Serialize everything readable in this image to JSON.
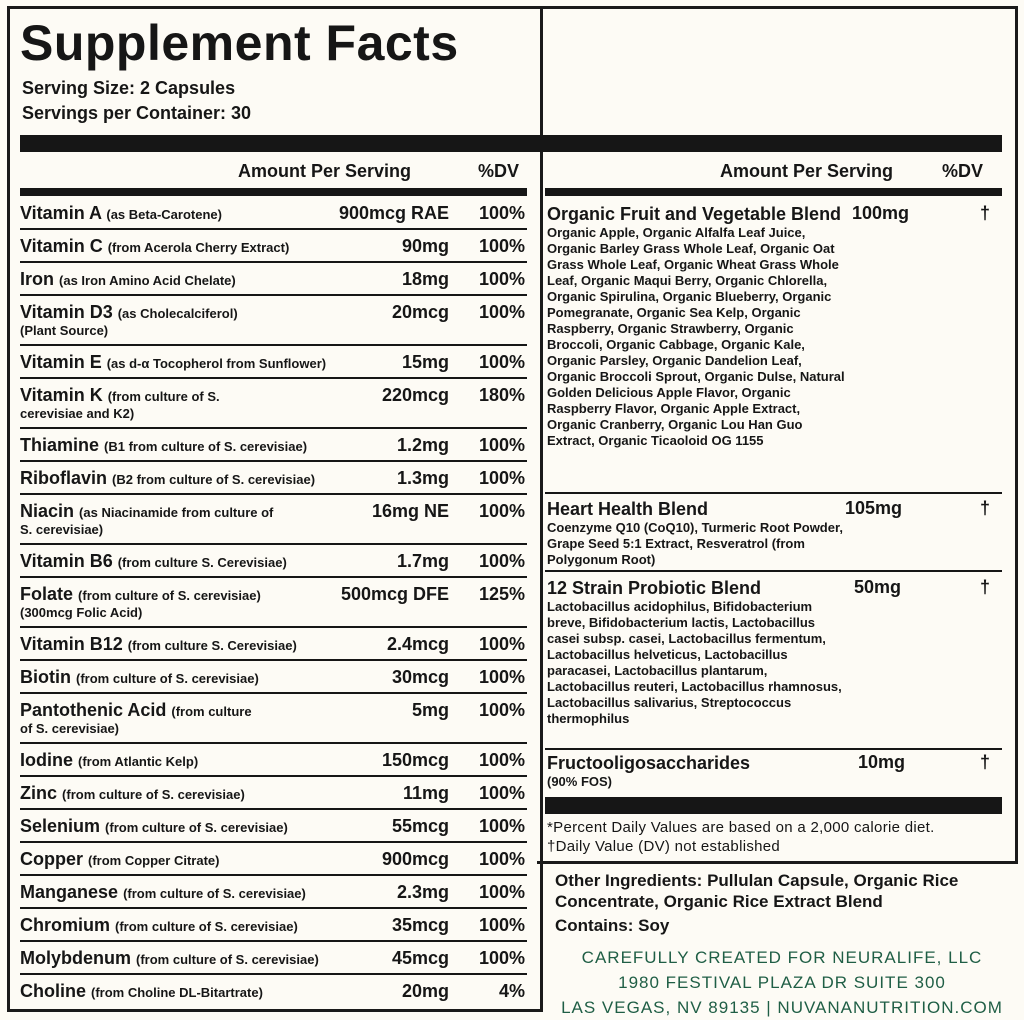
{
  "title": "Supplement Facts",
  "serving_size": "Serving Size: 2 Capsules",
  "servings_per_container": "Servings per Container: 30",
  "column_headers": {
    "amount": "Amount Per Serving",
    "dv": "%DV"
  },
  "left_rows": [
    {
      "name": "Vitamin A",
      "source": "(as Beta-Carotene)",
      "source2": "",
      "amount": "900mcg RAE",
      "dv": "100%"
    },
    {
      "name": "Vitamin C",
      "source": "(from Acerola Cherry Extract)",
      "source2": "",
      "amount": "90mg",
      "dv": "100%"
    },
    {
      "name": "Iron",
      "source": "(as Iron Amino Acid Chelate)",
      "source2": "",
      "amount": "18mg",
      "dv": "100%"
    },
    {
      "name": "Vitamin D3",
      "source": "(as Cholecalciferol)",
      "source2": "(Plant Source)",
      "amount": "20mcg",
      "dv": "100%"
    },
    {
      "name": "Vitamin E",
      "source": "(as d-α Tocopherol from Sunflower)",
      "source2": "",
      "amount": "15mg",
      "dv": "100%"
    },
    {
      "name": "Vitamin K",
      "source": "(from culture of S.",
      "source2": "cerevisiae and K2)",
      "amount": "220mcg",
      "dv": "180%"
    },
    {
      "name": "Thiamine",
      "source": "(B1 from culture of S. cerevisiae)",
      "source2": "",
      "amount": "1.2mg",
      "dv": "100%"
    },
    {
      "name": "Riboflavin",
      "source": "(B2 from culture of S. cerevisiae)",
      "source2": "",
      "amount": "1.3mg",
      "dv": "100%"
    },
    {
      "name": "Niacin",
      "source": "(as Niacinamide from culture of",
      "source2": "S. cerevisiae)",
      "amount": "16mg NE",
      "dv": "100%"
    },
    {
      "name": "Vitamin B6",
      "source": "(from culture S. Cerevisiae)",
      "source2": "",
      "amount": "1.7mg",
      "dv": "100%"
    },
    {
      "name": "Folate",
      "source": "(from culture of S. cerevisiae)",
      "source2": "(300mcg Folic Acid)",
      "amount": "500mcg DFE",
      "dv": "125%"
    },
    {
      "name": "Vitamin B12",
      "source": "(from culture S. Cerevisiae)",
      "source2": "",
      "amount": "2.4mcg",
      "dv": "100%"
    },
    {
      "name": "Biotin",
      "source": "(from culture of S. cerevisiae)",
      "source2": "",
      "amount": "30mcg",
      "dv": "100%"
    },
    {
      "name": "Pantothenic Acid",
      "source": "(from culture",
      "source2": "of S. cerevisiae)",
      "amount": "5mg",
      "dv": "100%"
    },
    {
      "name": "Iodine",
      "source": "(from Atlantic Kelp)",
      "source2": "",
      "amount": "150mcg",
      "dv": "100%"
    },
    {
      "name": "Zinc",
      "source": "(from culture of S. cerevisiae)",
      "source2": "",
      "amount": "11mg",
      "dv": "100%"
    },
    {
      "name": "Selenium",
      "source": "(from culture of S. cerevisiae)",
      "source2": "",
      "amount": "55mcg",
      "dv": "100%"
    },
    {
      "name": "Copper",
      "source": "(from Copper Citrate)",
      "source2": "",
      "amount": "900mcg",
      "dv": "100%"
    },
    {
      "name": "Manganese",
      "source": "(from culture of S. cerevisiae)",
      "source2": "",
      "amount": "2.3mg",
      "dv": "100%"
    },
    {
      "name": "Chromium",
      "source": "(from culture of S. cerevisiae)",
      "source2": "",
      "amount": "35mcg",
      "dv": "100%"
    },
    {
      "name": "Molybdenum",
      "source": "(from culture of S. cerevisiae)",
      "source2": "",
      "amount": "45mcg",
      "dv": "100%"
    },
    {
      "name": "Choline",
      "source": "(from Choline DL-Bitartrate)",
      "source2": "",
      "amount": "20mg",
      "dv": "4%"
    }
  ],
  "right_rows": [
    {
      "name": "Organic Fruit and Vegetable Blend",
      "details": "Organic Apple, Organic Alfalfa Leaf Juice, Organic Barley Grass Whole Leaf, Organic Oat Grass Whole Leaf, Organic Wheat Grass Whole Leaf, Organic Maqui Berry, Organic Chlorella, Organic Spirulina, Organic Blueberry, Organic Pomegranate, Organic Sea Kelp, Organic Raspberry, Organic Strawberry, Organic Broccoli, Organic Cabbage, Organic Kale, Organic Parsley, Organic Dandelion Leaf, Organic Broccoli Sprout, Organic Dulse, Natural Golden Delicious Apple Flavor, Organic Raspberry Flavor, Organic Apple Extract, Organic Cranberry, Organic Lou Han Guo Extract, Organic Ticaoloid OG 1155",
      "amount": "100mg",
      "dv": "†"
    },
    {
      "name": "Heart Health Blend",
      "details": "Coenzyme Q10 (CoQ10), Turmeric Root Powder, Grape Seed 5:1 Extract, Resveratrol (from Polygonum Root)",
      "amount": "105mg",
      "dv": "†"
    },
    {
      "name": "12 Strain Probiotic Blend",
      "details": "Lactobacillus acidophilus, Bifidobacterium breve, Bifidobacterium lactis, Lactobacillus casei subsp. casei, Lactobacillus fermentum, Lactobacillus helveticus, Lactobacillus paracasei, Lactobacillus plantarum, Lactobacillus reuteri, Lactobacillus rhamnosus, Lactobacillus salivarius, Streptococcus thermophilus",
      "amount": "50mg",
      "dv": "†"
    },
    {
      "name": "Fructooligosaccharides",
      "details": "(90% FOS)",
      "amount": "10mg",
      "dv": "†"
    }
  ],
  "footnotes": {
    "line1": "*Percent Daily Values are based on a 2,000 calorie diet.",
    "line2": "†Daily Value (DV) not established"
  },
  "other_ingredients": "Other Ingredients: Pullulan Capsule, Organic Rice Concentrate, Organic Rice Extract Blend",
  "contains": "Contains: Soy",
  "manufacturer": {
    "line1": "CAREFULLY CREATED FOR NEURALIFE, LLC",
    "line2": "1980 FESTIVAL PLAZA DR SUITE 300",
    "line3": "LAS VEGAS, NV 89135 | NUVANANUTRITION.COM"
  },
  "colors": {
    "ink": "#161616",
    "background": "#fdfbf5",
    "manufacturer_text": "#1f5e45"
  }
}
